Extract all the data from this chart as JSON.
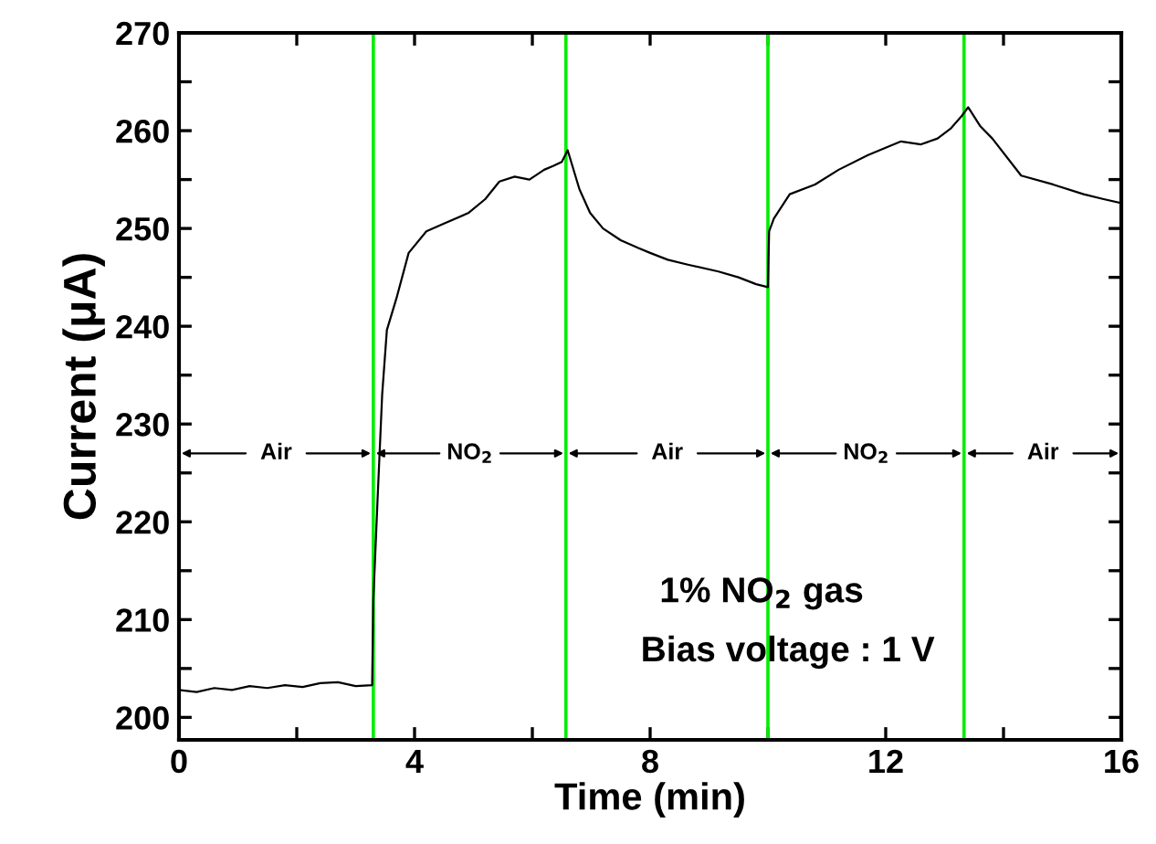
{
  "chart_data": {
    "type": "line",
    "xlabel": "Time (min)",
    "ylabel": "Current (μA)",
    "series": [
      {
        "color": "#000000",
        "x": [
          0,
          0.3,
          0.6,
          0.9,
          1.2,
          1.5,
          1.8,
          2.1,
          2.4,
          2.7,
          3.0,
          3.28,
          3.3,
          3.37,
          3.45,
          3.53,
          3.69,
          3.9,
          4.2,
          4.5,
          4.92,
          5.2,
          5.44,
          5.7,
          5.95,
          6.2,
          6.36,
          6.5,
          6.6,
          6.8,
          6.98,
          7.2,
          7.5,
          7.8,
          8.0,
          8.3,
          8.64,
          9.16,
          9.5,
          9.8,
          10.0,
          10.02,
          10.1,
          10.37,
          10.8,
          11.2,
          11.7,
          12.26,
          12.6,
          12.88,
          13.1,
          13.29,
          13.4,
          13.6,
          13.81,
          14.3,
          14.84,
          15.36,
          15.7,
          16.0
        ],
        "values": [
          202.8,
          202.6,
          203.0,
          202.8,
          203.2,
          203.0,
          203.3,
          203.1,
          203.5,
          203.6,
          203.2,
          203.3,
          212,
          222,
          233,
          239.6,
          242.8,
          247.5,
          249.7,
          250.5,
          251.6,
          253.0,
          254.8,
          255.3,
          255.0,
          256.0,
          256.4,
          256.8,
          258.0,
          254.0,
          251.6,
          250.0,
          248.8,
          248.0,
          247.5,
          246.8,
          246.3,
          245.6,
          245.0,
          244.3,
          244.0,
          249.7,
          251.0,
          253.5,
          254.5,
          256.0,
          257.5,
          258.9,
          258.6,
          259.2,
          260.2,
          261.5,
          262.4,
          260.5,
          259.2,
          255.4,
          254.5,
          253.5,
          253.0,
          252.6
        ]
      }
    ],
    "xlim": [
      0,
      16
    ],
    "xticks": [
      0,
      {
        "value": 2,
        "label": null
      },
      4,
      {
        "value": 6,
        "label": null
      },
      8,
      {
        "value": 10,
        "label": null
      },
      12,
      {
        "value": 14,
        "label": null
      },
      16
    ],
    "ylim": [
      197.7,
      270
    ],
    "yticks": [
      200,
      {
        "value": 205,
        "label": null
      },
      210,
      {
        "value": 215,
        "label": null
      },
      220,
      {
        "value": 225,
        "label": null
      },
      230,
      {
        "value": 235,
        "label": null
      },
      240,
      {
        "value": 245,
        "label": null
      },
      250,
      {
        "value": 255,
        "label": null
      },
      260,
      {
        "value": 265,
        "label": null
      },
      270
    ],
    "ref_lines": [
      {
        "axis": "x",
        "value": 3.3,
        "color": "#00ee00"
      },
      {
        "axis": "x",
        "value": 6.57,
        "color": "#00ee00"
      },
      {
        "axis": "x",
        "value": 10.0,
        "color": "#00ee00"
      },
      {
        "axis": "x",
        "value": 13.33,
        "color": "#00ee00"
      }
    ],
    "annotations": [
      {
        "text": "Air",
        "x": 1.65,
        "y": 227
      },
      {
        "text": "NO$_{2}$",
        "x": 4.94,
        "y": 227
      },
      {
        "text": "Air",
        "x": 8.29,
        "y": 227
      },
      {
        "text": "NO$_{2}$",
        "x": 11.67,
        "y": 227
      },
      {
        "text": "Air",
        "x": 14.67,
        "y": 227
      },
      "1% NO$_{2}$ gas",
      "Bias voltage : 1 V"
    ],
    "grid": false,
    "legend": false,
    "marker": "none",
    "line_style": "solid"
  }
}
